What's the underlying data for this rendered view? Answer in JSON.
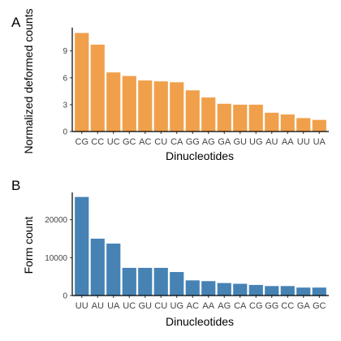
{
  "chart_data": [
    {
      "type": "bar",
      "panel": "A",
      "title": "",
      "xlabel": "Dinucleotides",
      "ylabel": "Normalized deformed counts",
      "categories": [
        "CG",
        "CC",
        "UC",
        "GC",
        "AC",
        "CU",
        "CA",
        "GG",
        "AG",
        "GA",
        "GU",
        "UG",
        "AU",
        "AA",
        "UU",
        "UA"
      ],
      "values": [
        11.0,
        9.7,
        6.6,
        6.2,
        5.7,
        5.6,
        5.5,
        4.6,
        3.8,
        3.1,
        3.0,
        3.0,
        2.1,
        1.9,
        1.5,
        1.3
      ],
      "ylim": [
        0,
        11.6
      ],
      "yticks": [
        0,
        3,
        6,
        9
      ],
      "bar_color": "#F0A04B",
      "grid": false
    },
    {
      "type": "bar",
      "panel": "B",
      "title": "",
      "xlabel": "Dinucleotides",
      "ylabel": "Form count",
      "categories": [
        "UU",
        "AU",
        "UA",
        "UC",
        "GU",
        "CU",
        "UG",
        "AC",
        "AA",
        "AG",
        "CA",
        "CG",
        "GG",
        "CC",
        "GA",
        "GC"
      ],
      "values": [
        26000,
        15000,
        13700,
        7300,
        7300,
        7300,
        6200,
        4000,
        3800,
        3300,
        3100,
        2800,
        2500,
        2500,
        2100,
        2100
      ],
      "ylim": [
        0,
        27200
      ],
      "yticks": [
        0,
        10000,
        20000
      ],
      "bar_color": "#4682B4",
      "grid": false
    }
  ]
}
